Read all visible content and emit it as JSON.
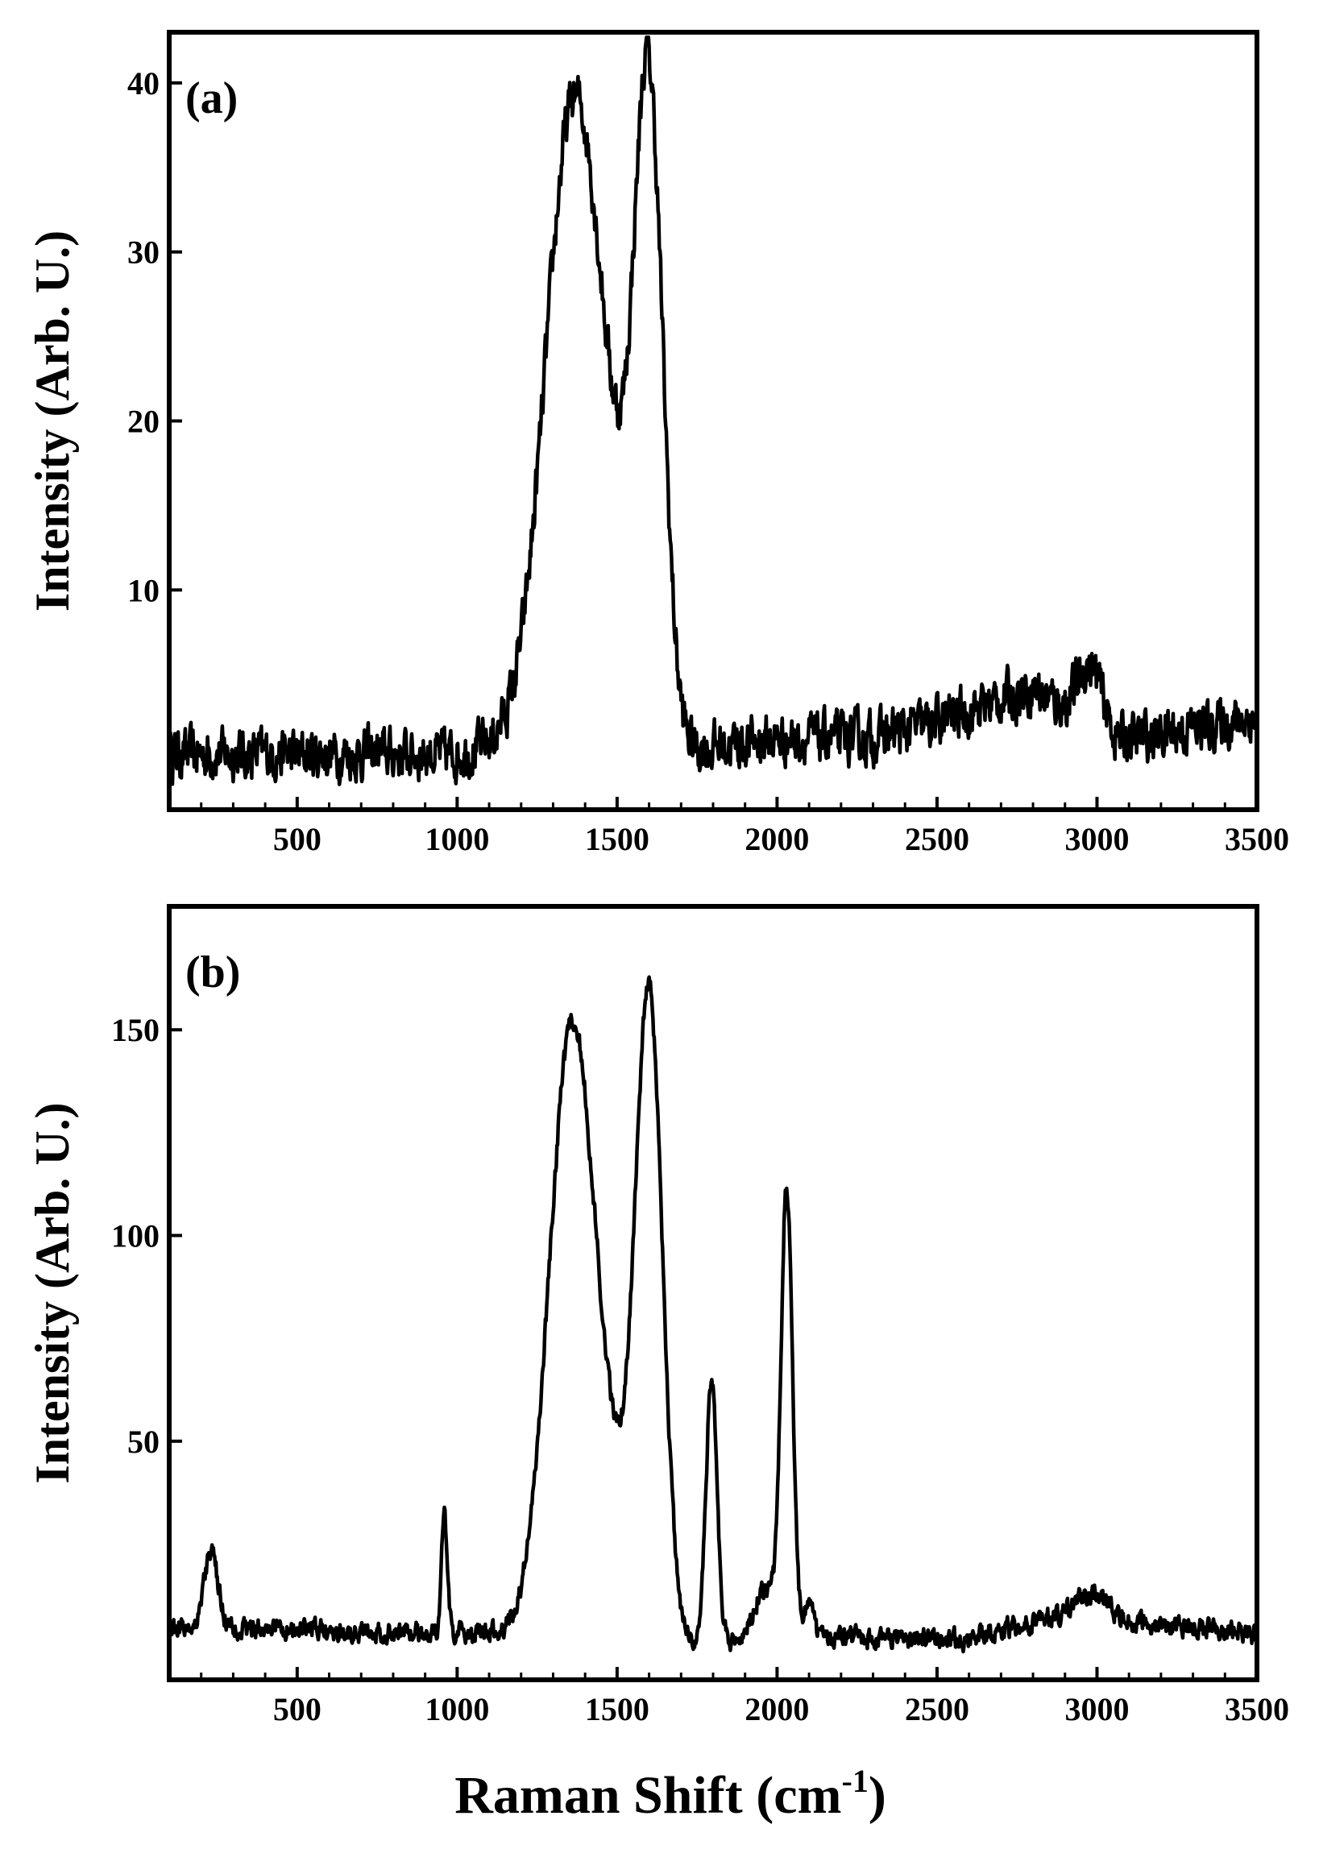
{
  "chart_data": [
    {
      "type": "line",
      "panel_label": "(a)",
      "ylabel": "Intensity (Arb. U.)",
      "xlim": [
        100,
        3500
      ],
      "ylim": [
        -3,
        43
      ],
      "xticks": [
        500,
        1000,
        1500,
        2000,
        2500,
        3000,
        3500
      ],
      "yticks": [
        10,
        20,
        30,
        40
      ],
      "grid": false,
      "legend": "none",
      "baseline": [
        [
          100,
          0.3
        ],
        [
          1000,
          0.3
        ],
        [
          1150,
          1.0
        ],
        [
          1700,
          0.5
        ],
        [
          2000,
          1.2
        ],
        [
          2300,
          1.2
        ],
        [
          2500,
          2.2
        ],
        [
          2800,
          4.2
        ],
        [
          3050,
          1.0
        ],
        [
          3500,
          2.5
        ]
      ],
      "peaks": [
        {
          "center": 1360,
          "height": 36.5,
          "width": 85
        },
        {
          "center": 1598,
          "height": 38.5,
          "width": 45
        },
        {
          "center": 1480,
          "height": 7.5,
          "width": 70
        },
        {
          "center": 2980,
          "height": 3.5,
          "width": 40
        }
      ],
      "noise": 1.2
    },
    {
      "type": "line",
      "panel_label": "(b)",
      "ylabel": "Intensity (Arb. U.)",
      "xlim": [
        100,
        3500
      ],
      "ylim": [
        -8,
        180
      ],
      "xticks": [
        500,
        1000,
        1500,
        2000,
        2500,
        3000,
        3500
      ],
      "yticks": [
        50,
        100,
        150
      ],
      "grid": false,
      "legend": "none",
      "baseline": [
        [
          100,
          5
        ],
        [
          1200,
          3
        ],
        [
          1700,
          0
        ],
        [
          2000,
          3
        ],
        [
          2300,
          2
        ],
        [
          2600,
          2
        ],
        [
          2900,
          8
        ],
        [
          3050,
          6
        ],
        [
          3500,
          3
        ]
      ],
      "peaks": [
        {
          "center": 230,
          "height": 18,
          "width": 22
        },
        {
          "center": 960,
          "height": 28,
          "width": 9
        },
        {
          "center": 1355,
          "height": 137,
          "width": 70
        },
        {
          "center": 1475,
          "height": 30,
          "width": 90
        },
        {
          "center": 1600,
          "height": 148,
          "width": 42
        },
        {
          "center": 1795,
          "height": 64,
          "width": 17
        },
        {
          "center": 2030,
          "height": 108,
          "width": 18
        },
        {
          "center": 1960,
          "height": 12,
          "width": 30
        },
        {
          "center": 2100,
          "height": 10,
          "width": 12
        },
        {
          "center": 2990,
          "height": 6,
          "width": 50
        }
      ],
      "noise": 2.0
    }
  ],
  "xlabel": "Raman Shift (cm",
  "xlabel_sup": "-1",
  "xlabel_close": ")"
}
